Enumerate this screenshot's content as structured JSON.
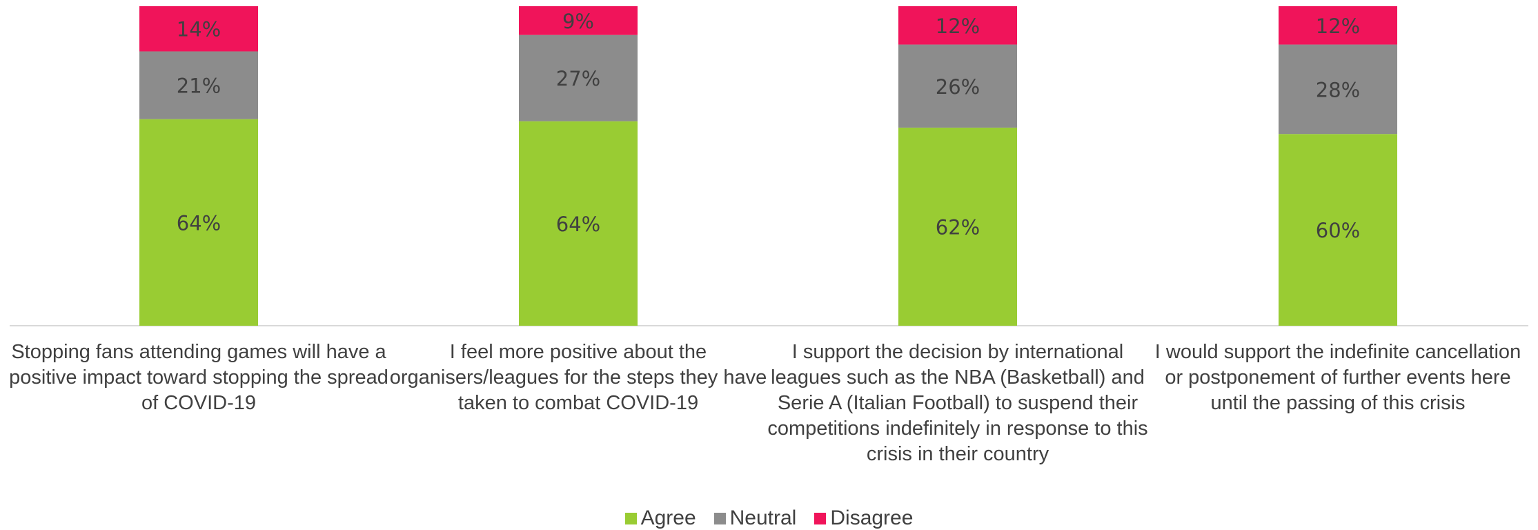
{
  "chart_data": {
    "type": "bar",
    "stacked": true,
    "percent_stacked": true,
    "categories": [
      "Stopping fans attending games will have a positive impact toward stopping the spread of COVID-19",
      "I feel more positive about the organisers/leagues for the steps they have taken to combat COVID-19",
      "I support the decision by international leagues such as the NBA (Basketball) and Serie A (Italian Football) to suspend their competitions indefinitely in response to this crisis in their country",
      "I would support the indefinite cancellation or postponement of further events here until the passing of this crisis"
    ],
    "series": [
      {
        "name": "Agree",
        "color": "#99cc33",
        "values": [
          64,
          64,
          62,
          60
        ]
      },
      {
        "name": "Neutral",
        "color": "#8c8c8c",
        "values": [
          21,
          27,
          26,
          28
        ]
      },
      {
        "name": "Disagree",
        "color": "#f0145a",
        "values": [
          14,
          9,
          12,
          12
        ]
      }
    ],
    "data_labels": [
      [
        "64%",
        "64%",
        "62%",
        "60%"
      ],
      [
        "21%",
        "27%",
        "26%",
        "28%"
      ],
      [
        "14%",
        "9%",
        "12%",
        "12%"
      ]
    ],
    "ylim": [
      0,
      100
    ],
    "grid": false,
    "legend_position": "bottom"
  }
}
